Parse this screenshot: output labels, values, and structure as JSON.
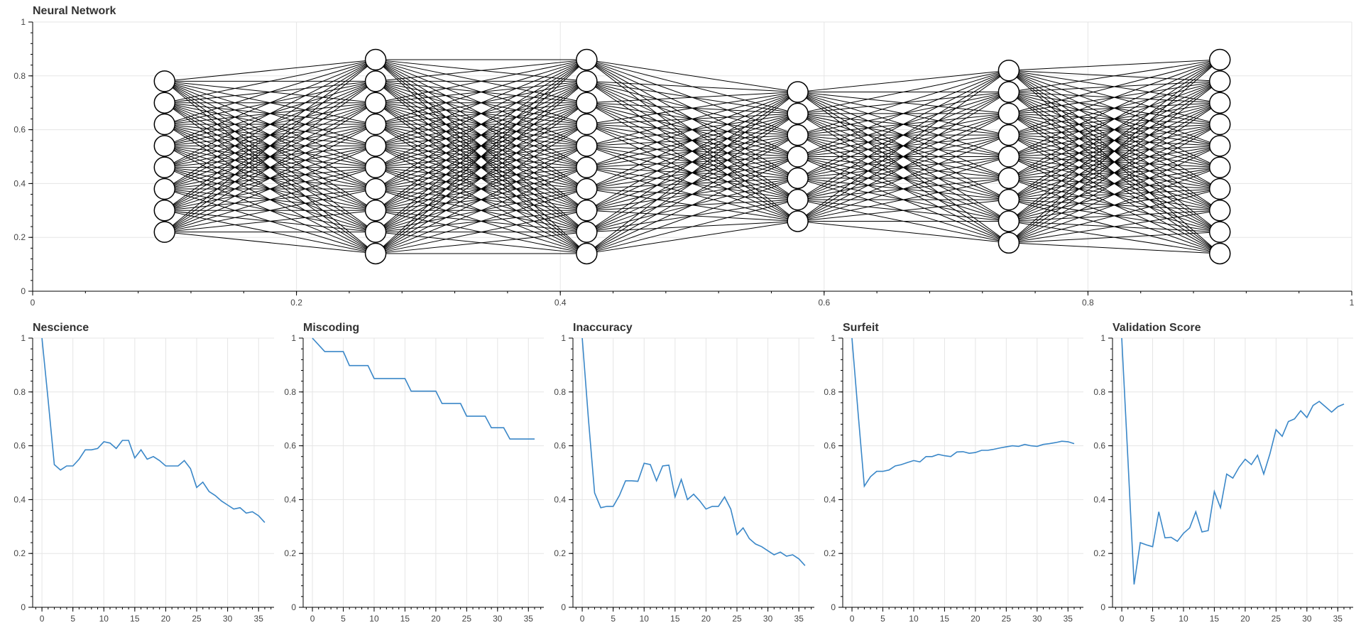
{
  "chart_data": [
    {
      "type": "network",
      "title": "Neural Network",
      "xlim": [
        0,
        1
      ],
      "ylim": [
        0,
        1
      ],
      "grid": true,
      "xticks": [
        "0",
        "0.2",
        "0.4",
        "0.6",
        "0.8",
        "1"
      ],
      "yticks": [
        "0",
        "0.2",
        "0.4",
        "0.6",
        "0.8",
        "1"
      ],
      "layers": [
        {
          "x": 0.1,
          "nodes": [
            0.22,
            0.3,
            0.38,
            0.46,
            0.54,
            0.62,
            0.7,
            0.78
          ]
        },
        {
          "x": 0.26,
          "nodes": [
            0.14,
            0.22,
            0.3,
            0.38,
            0.46,
            0.54,
            0.62,
            0.7,
            0.78,
            0.86
          ]
        },
        {
          "x": 0.42,
          "nodes": [
            0.14,
            0.22,
            0.3,
            0.38,
            0.46,
            0.54,
            0.62,
            0.7,
            0.78,
            0.86
          ]
        },
        {
          "x": 0.58,
          "nodes": [
            0.26,
            0.34,
            0.42,
            0.5,
            0.58,
            0.66,
            0.74
          ]
        },
        {
          "x": 0.74,
          "nodes": [
            0.18,
            0.26,
            0.34,
            0.42,
            0.5,
            0.58,
            0.66,
            0.74,
            0.82
          ]
        },
        {
          "x": 0.9,
          "nodes": [
            0.14,
            0.22,
            0.3,
            0.38,
            0.46,
            0.54,
            0.62,
            0.7,
            0.78,
            0.86
          ]
        }
      ]
    },
    {
      "type": "line",
      "title": "Nescience",
      "xlim": [
        -1.5,
        37.5
      ],
      "ylim": [
        0,
        1
      ],
      "xticks": [
        "0",
        "5",
        "10",
        "15",
        "20",
        "25",
        "30",
        "35"
      ],
      "yticks": [
        "0",
        "0.2",
        "0.4",
        "0.6",
        "0.8",
        "1"
      ],
      "color": "#3a87c8",
      "series": [
        {
          "x": [
            0,
            1,
            2,
            3,
            4,
            5,
            6,
            7,
            8,
            9,
            10,
            11,
            12,
            13,
            14,
            15,
            16,
            17,
            18,
            19,
            20,
            21,
            22,
            23,
            24,
            25,
            26,
            27,
            28,
            29,
            30,
            31,
            32,
            33,
            34,
            35,
            36
          ],
          "y": [
            1.0,
            0.77,
            0.53,
            0.51,
            0.525,
            0.525,
            0.55,
            0.585,
            0.585,
            0.59,
            0.615,
            0.61,
            0.59,
            0.62,
            0.62,
            0.555,
            0.585,
            0.55,
            0.56,
            0.545,
            0.525,
            0.525,
            0.525,
            0.545,
            0.515,
            0.445,
            0.465,
            0.43,
            0.415,
            0.395,
            0.38,
            0.365,
            0.37,
            0.35,
            0.355,
            0.34,
            0.315
          ]
        }
      ]
    },
    {
      "type": "line",
      "title": "Miscoding",
      "xlim": [
        -1.5,
        37.5
      ],
      "ylim": [
        0,
        1
      ],
      "xticks": [
        "0",
        "5",
        "10",
        "15",
        "20",
        "25",
        "30",
        "35"
      ],
      "yticks": [
        "0",
        "0.2",
        "0.4",
        "0.6",
        "0.8",
        "1"
      ],
      "color": "#3a87c8",
      "series": [
        {
          "x": [
            0,
            2,
            5,
            6,
            9,
            10,
            15,
            16,
            20,
            21,
            24,
            25,
            28,
            29,
            31,
            32,
            36
          ],
          "y": [
            1.0,
            0.95,
            0.95,
            0.898,
            0.898,
            0.85,
            0.85,
            0.803,
            0.803,
            0.757,
            0.757,
            0.71,
            0.71,
            0.667,
            0.667,
            0.625,
            0.625
          ]
        }
      ]
    },
    {
      "type": "line",
      "title": "Inaccuracy",
      "xlim": [
        -1.5,
        37.5
      ],
      "ylim": [
        0,
        1
      ],
      "xticks": [
        "0",
        "5",
        "10",
        "15",
        "20",
        "25",
        "30",
        "35"
      ],
      "yticks": [
        "0",
        "0.2",
        "0.4",
        "0.6",
        "0.8",
        "1"
      ],
      "color": "#3a87c8",
      "series": [
        {
          "x": [
            0,
            1,
            2,
            3,
            4,
            5,
            6,
            7,
            8,
            9,
            10,
            11,
            12,
            13,
            14,
            15,
            16,
            17,
            18,
            19,
            20,
            21,
            22,
            23,
            24,
            25,
            26,
            27,
            28,
            29,
            30,
            31,
            32,
            33,
            34,
            35,
            36
          ],
          "y": [
            1.0,
            0.7,
            0.425,
            0.37,
            0.375,
            0.375,
            0.415,
            0.47,
            0.47,
            0.468,
            0.535,
            0.53,
            0.47,
            0.525,
            0.528,
            0.41,
            0.475,
            0.4,
            0.42,
            0.395,
            0.365,
            0.375,
            0.375,
            0.41,
            0.365,
            0.27,
            0.295,
            0.255,
            0.235,
            0.225,
            0.21,
            0.195,
            0.205,
            0.19,
            0.195,
            0.18,
            0.155
          ]
        }
      ]
    },
    {
      "type": "line",
      "title": "Surfeit",
      "xlim": [
        -1.5,
        37.5
      ],
      "ylim": [
        0,
        1
      ],
      "xticks": [
        "0",
        "5",
        "10",
        "15",
        "20",
        "25",
        "30",
        "35"
      ],
      "yticks": [
        "0",
        "0.2",
        "0.4",
        "0.6",
        "0.8",
        "1"
      ],
      "color": "#3a87c8",
      "series": [
        {
          "x": [
            0,
            1,
            2,
            3,
            4,
            5,
            6,
            7,
            8,
            9,
            10,
            11,
            12,
            13,
            14,
            15,
            16,
            17,
            18,
            19,
            20,
            21,
            22,
            23,
            24,
            25,
            26,
            27,
            28,
            29,
            30,
            31,
            32,
            33,
            34,
            35,
            36
          ],
          "y": [
            1.0,
            0.72,
            0.45,
            0.485,
            0.505,
            0.505,
            0.51,
            0.525,
            0.53,
            0.538,
            0.545,
            0.54,
            0.56,
            0.56,
            0.568,
            0.563,
            0.56,
            0.577,
            0.578,
            0.572,
            0.575,
            0.583,
            0.583,
            0.587,
            0.592,
            0.596,
            0.6,
            0.598,
            0.605,
            0.6,
            0.598,
            0.605,
            0.608,
            0.612,
            0.617,
            0.615,
            0.608
          ]
        }
      ]
    },
    {
      "type": "line",
      "title": "Validation Score",
      "xlim": [
        -1.5,
        37.5
      ],
      "ylim": [
        0,
        1
      ],
      "xticks": [
        "0",
        "5",
        "10",
        "15",
        "20",
        "25",
        "30",
        "35"
      ],
      "yticks": [
        "0",
        "0.2",
        "0.4",
        "0.6",
        "0.8",
        "1"
      ],
      "color": "#3a87c8",
      "series": [
        {
          "x": [
            0,
            1,
            2,
            3,
            4,
            5,
            6,
            7,
            8,
            9,
            10,
            11,
            12,
            13,
            14,
            15,
            16,
            17,
            18,
            19,
            20,
            21,
            22,
            23,
            24,
            25,
            26,
            27,
            28,
            29,
            30,
            31,
            32,
            33,
            34,
            35,
            36
          ],
          "y": [
            1.0,
            0.55,
            0.085,
            0.24,
            0.232,
            0.225,
            0.355,
            0.258,
            0.26,
            0.245,
            0.275,
            0.295,
            0.355,
            0.28,
            0.285,
            0.43,
            0.37,
            0.495,
            0.48,
            0.52,
            0.55,
            0.53,
            0.565,
            0.495,
            0.57,
            0.66,
            0.635,
            0.69,
            0.7,
            0.73,
            0.705,
            0.75,
            0.765,
            0.745,
            0.725,
            0.745,
            0.755
          ]
        }
      ]
    }
  ]
}
